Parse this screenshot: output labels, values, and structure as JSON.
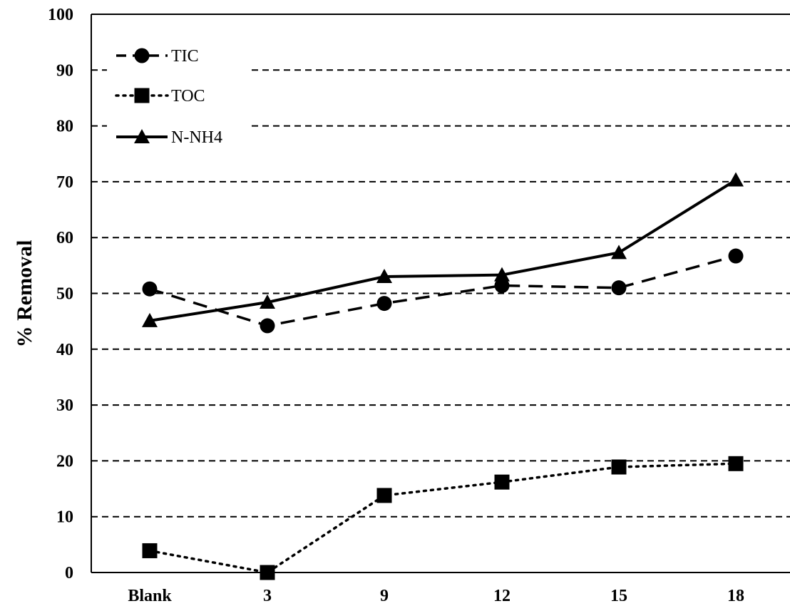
{
  "chart_data": {
    "type": "line",
    "categories": [
      "Blank",
      "3",
      "9",
      "12",
      "15",
      "18"
    ],
    "ylabel": "% Removal",
    "xlabel": "",
    "ylim": [
      0,
      100
    ],
    "yticks": [
      0,
      10,
      20,
      30,
      40,
      50,
      60,
      70,
      80,
      90,
      100
    ],
    "grid": "horizontal dashed",
    "legend_position": "top-left",
    "series": [
      {
        "name": "TIC",
        "marker": "circle",
        "line": "dashed",
        "values": [
          50.8,
          44.2,
          48.2,
          51.4,
          51.0,
          56.7
        ]
      },
      {
        "name": "TOC",
        "marker": "square",
        "line": "dotted",
        "values": [
          3.9,
          0.0,
          13.8,
          16.2,
          18.9,
          19.5
        ]
      },
      {
        "name": "N-NH4",
        "marker": "triangle",
        "line": "solid",
        "values": [
          45.1,
          48.4,
          53.0,
          53.3,
          57.3,
          70.3
        ]
      }
    ],
    "colors": {
      "line": "#000000",
      "background": "#ffffff"
    }
  }
}
